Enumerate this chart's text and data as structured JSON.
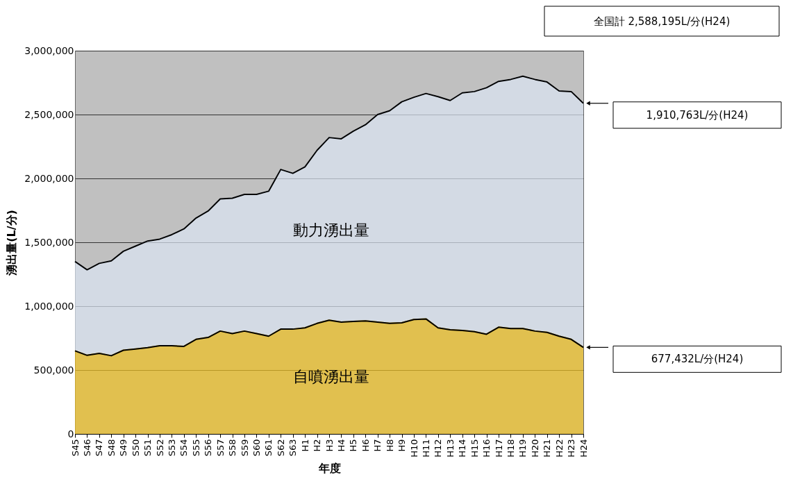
{
  "chart_data": {
    "type": "area",
    "stacked": true,
    "xlabel": "年度",
    "ylabel": "湧出量(L/分)",
    "categories": [
      "S45",
      "S46",
      "S47",
      "S48",
      "S49",
      "S50",
      "S51",
      "S52",
      "S53",
      "S54",
      "S55",
      "S56",
      "S57",
      "S58",
      "S59",
      "S60",
      "S61",
      "S62",
      "S63",
      "H1",
      "H2",
      "H3",
      "H4",
      "H5",
      "H6",
      "H7",
      "H8",
      "H9",
      "H10",
      "H11",
      "H12",
      "H13",
      "H14",
      "H15",
      "H16",
      "H17",
      "H18",
      "H19",
      "H20",
      "H21",
      "H22",
      "H23",
      "H24"
    ],
    "series": [
      {
        "name": "自噴湧出量",
        "color": "#f0c020",
        "values": [
          650000,
          615000,
          630000,
          612000,
          655000,
          665000,
          675000,
          690000,
          690000,
          685000,
          740000,
          755000,
          805000,
          785000,
          805000,
          785000,
          765000,
          820000,
          820000,
          830000,
          865000,
          890000,
          875000,
          880000,
          885000,
          875000,
          865000,
          870000,
          895000,
          900000,
          830000,
          815000,
          810000,
          800000,
          780000,
          835000,
          825000,
          825000,
          805000,
          795000,
          765000,
          740000,
          677432
        ]
      },
      {
        "name": "動力湧出量",
        "color": "#dbe6f3",
        "values": [
          700000,
          670000,
          705000,
          743000,
          775000,
          805000,
          835000,
          835000,
          870000,
          920000,
          950000,
          990000,
          1035000,
          1060000,
          1070000,
          1090000,
          1135000,
          1250000,
          1220000,
          1260000,
          1355000,
          1430000,
          1435000,
          1490000,
          1535000,
          1625000,
          1665000,
          1730000,
          1740000,
          1765000,
          1810000,
          1795000,
          1860000,
          1880000,
          1930000,
          1925000,
          1950000,
          1975000,
          1970000,
          1960000,
          1920000,
          1940000,
          1910763
        ]
      }
    ],
    "ylim": [
      0,
      3000000
    ],
    "yticks": [
      0,
      {
        "value": 500000,
        "label": "500,000"
      },
      {
        "value": 1000000,
        "label": "1,000,000"
      },
      {
        "value": 1500000,
        "label": "1,500,000"
      },
      {
        "value": 2000000,
        "label": "2,000,000"
      },
      {
        "value": 2500000,
        "label": "2,500,000"
      },
      {
        "value": 3000000,
        "label": "3,000,000"
      }
    ],
    "grid": "y",
    "annotations": [
      "全国計 2,588,195L/分(H24)",
      "1,910,763L/分(H24)",
      "677,432L/分(H24)"
    ]
  }
}
